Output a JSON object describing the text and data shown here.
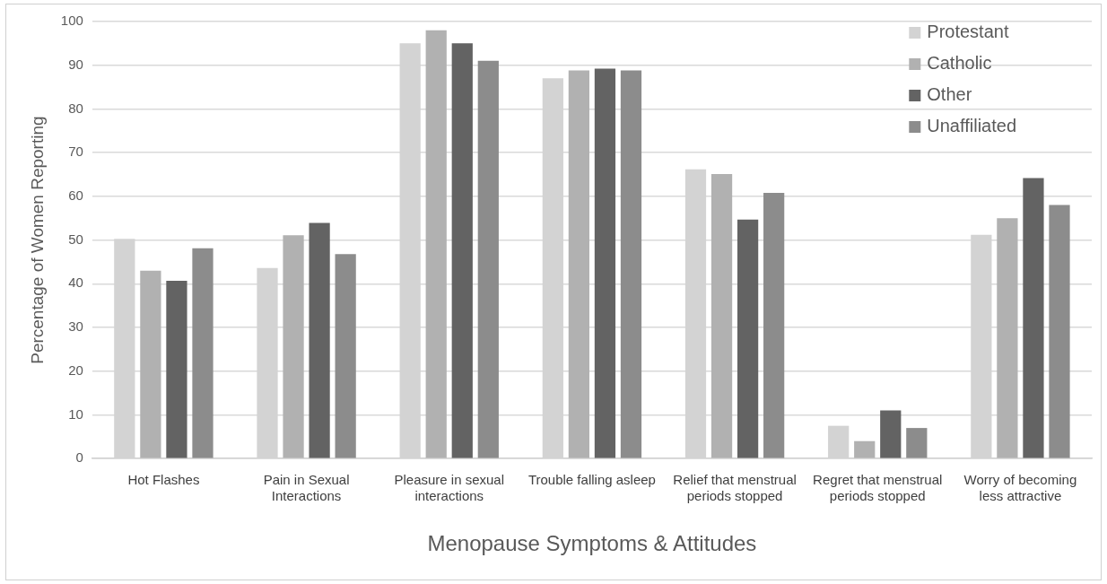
{
  "chart_data": {
    "type": "bar",
    "xlabel": "Menopause Symptoms & Attitudes",
    "ylabel": "Percentage of Women Reporting",
    "categories": [
      "Hot Flashes",
      "Pain in Sexual Interactions",
      "Pleasure in sexual interactions",
      "Trouble falling asleep",
      "Relief that menstrual periods stopped",
      "Regret that menstrual periods stopped",
      "Worry of becoming less attractive"
    ],
    "series": [
      {
        "name": "Protestant",
        "color": "#d3d3d3",
        "values": [
          50.3,
          43.6,
          95,
          87,
          66.2,
          7.5,
          51.2
        ]
      },
      {
        "name": "Catholic",
        "color": "#b1b1b1",
        "values": [
          43,
          51.1,
          98,
          88.8,
          65.1,
          4,
          55
        ]
      },
      {
        "name": "Other",
        "color": "#636363",
        "values": [
          40.7,
          53.9,
          95,
          89.2,
          54.7,
          11,
          64.2
        ]
      },
      {
        "name": "Unaffiliated",
        "color": "#8c8c8c",
        "values": [
          48.1,
          46.8,
          91,
          88.8,
          60.8,
          7,
          58
        ]
      }
    ],
    "ylim": [
      0,
      100
    ],
    "yticks": [
      0,
      10,
      20,
      30,
      40,
      50,
      60,
      70,
      80,
      90,
      100
    ],
    "grid": "y",
    "legend": "top right"
  }
}
